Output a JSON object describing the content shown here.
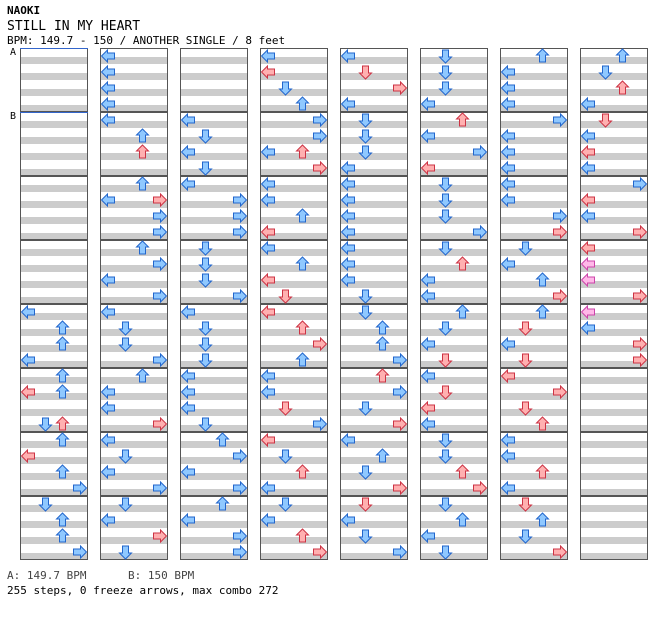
{
  "song": {
    "artist": "NAOKI",
    "title": "STILL IN MY HEART",
    "info": "BPM: 149.7 - 150 / ANOTHER SINGLE / 8 feet"
  },
  "markers": {
    "a": "A",
    "b": "B"
  },
  "footer": {
    "bpm_a": "A: 149.7 BPM",
    "bpm_b": "B: 150 BPM",
    "stats": "255 steps, 0 freeze arrows, max combo 272"
  },
  "colors": {
    "tap": "#ffb0b0",
    "tap_stroke": "#cc3344",
    "blue": "#8fc8ff",
    "blue_stroke": "#2266cc",
    "pink": "#ffb8e8",
    "pink_stroke": "#cc44aa",
    "stripe": "#cccccc",
    "bpm_line": "#3366cc"
  },
  "columns": [
    {
      "measures": [
        [],
        [],
        [],
        [],
        [
          [
            1,
            0,
            "L"
          ],
          [
            1,
            1,
            "U"
          ],
          [
            1,
            2,
            "U"
          ],
          [
            1,
            3,
            "L"
          ]
        ],
        [
          [
            1,
            0,
            "U"
          ],
          [
            0,
            1,
            "L"
          ],
          [
            0,
            3,
            "U"
          ],
          [
            1,
            1,
            "U"
          ],
          [
            1,
            3,
            "D"
          ]
        ],
        [
          [
            1,
            0,
            "U"
          ],
          [
            0,
            1,
            "L"
          ],
          [
            1,
            2,
            "U"
          ],
          [
            1,
            3,
            "R"
          ]
        ],
        [
          [
            1,
            0,
            "D"
          ],
          [
            1,
            1,
            "U"
          ],
          [
            1,
            2,
            "U"
          ],
          [
            1,
            3,
            "R"
          ]
        ]
      ]
    },
    {
      "measures": [
        [
          [
            1,
            0,
            "L"
          ],
          [
            1,
            1,
            "L"
          ],
          [
            1,
            2,
            "L"
          ],
          [
            1,
            3,
            "L"
          ]
        ],
        [
          [
            0,
            2,
            "U"
          ],
          [
            1,
            0,
            "L"
          ],
          [
            1,
            1,
            "U"
          ]
        ],
        [
          [
            1,
            0,
            "U"
          ],
          [
            0,
            1,
            "R"
          ],
          [
            1,
            1,
            "L"
          ],
          [
            1,
            2,
            "R"
          ],
          [
            1,
            3,
            "R"
          ]
        ],
        [
          [
            1,
            0,
            "U"
          ],
          [
            1,
            1,
            "R"
          ],
          [
            1,
            2,
            "L"
          ],
          [
            1,
            3,
            "R"
          ]
        ],
        [
          [
            1,
            0,
            "L"
          ],
          [
            1,
            1,
            "D"
          ],
          [
            1,
            2,
            "D"
          ],
          [
            1,
            3,
            "R"
          ]
        ],
        [
          [
            1,
            0,
            "U"
          ],
          [
            1,
            1,
            "L"
          ],
          [
            1,
            2,
            "L"
          ],
          [
            0,
            3,
            "R"
          ]
        ],
        [
          [
            1,
            0,
            "L"
          ],
          [
            1,
            1,
            "D"
          ],
          [
            1,
            2,
            "L"
          ],
          [
            1,
            3,
            "R"
          ]
        ],
        [
          [
            1,
            0,
            "D"
          ],
          [
            1,
            1,
            "L"
          ],
          [
            0,
            2,
            "R"
          ],
          [
            1,
            3,
            "D"
          ]
        ]
      ]
    },
    {
      "measures": [
        [],
        [
          [
            1,
            0,
            "L"
          ],
          [
            1,
            1,
            "D"
          ],
          [
            1,
            2,
            "L"
          ],
          [
            1,
            3,
            "D"
          ]
        ],
        [
          [
            1,
            0,
            "L"
          ],
          [
            1,
            1,
            "R"
          ],
          [
            1,
            2,
            "R"
          ],
          [
            1,
            3,
            "R"
          ]
        ],
        [
          [
            1,
            0,
            "D"
          ],
          [
            1,
            1,
            "D"
          ],
          [
            1,
            2,
            "D"
          ],
          [
            1,
            3,
            "R"
          ]
        ],
        [
          [
            1,
            0,
            "L"
          ],
          [
            1,
            1,
            "D"
          ],
          [
            1,
            2,
            "D"
          ],
          [
            1,
            3,
            "D"
          ]
        ],
        [
          [
            1,
            0,
            "L"
          ],
          [
            1,
            1,
            "L"
          ],
          [
            1,
            2,
            "L"
          ],
          [
            1,
            3,
            "D"
          ]
        ],
        [
          [
            1,
            0,
            "U"
          ],
          [
            1,
            1,
            "R"
          ],
          [
            1,
            2,
            "L"
          ],
          [
            1,
            3,
            "R"
          ]
        ],
        [
          [
            1,
            0,
            "U"
          ],
          [
            1,
            1,
            "L"
          ],
          [
            1,
            2,
            "R"
          ],
          [
            1,
            3,
            "R"
          ]
        ]
      ]
    },
    {
      "measures": [
        [
          [
            1,
            0,
            "L"
          ],
          [
            0,
            1,
            "L"
          ],
          [
            1,
            2,
            "D"
          ],
          [
            1,
            3,
            "U"
          ]
        ],
        [
          [
            1,
            0,
            "R"
          ],
          [
            1,
            1,
            "R"
          ],
          [
            0,
            2,
            "U"
          ],
          [
            1,
            2,
            "L"
          ],
          [
            0,
            3,
            "R"
          ]
        ],
        [
          [
            1,
            0,
            "L"
          ],
          [
            1,
            1,
            "L"
          ],
          [
            1,
            2,
            "U"
          ],
          [
            0,
            3,
            "L"
          ]
        ],
        [
          [
            1,
            0,
            "L"
          ],
          [
            1,
            1,
            "U"
          ],
          [
            0,
            2,
            "L"
          ],
          [
            0,
            3,
            "D"
          ]
        ],
        [
          [
            0,
            0,
            "L"
          ],
          [
            0,
            1,
            "U"
          ],
          [
            0,
            2,
            "R"
          ],
          [
            1,
            3,
            "U"
          ]
        ],
        [
          [
            1,
            0,
            "L"
          ],
          [
            1,
            1,
            "L"
          ],
          [
            0,
            2,
            "D"
          ],
          [
            1,
            3,
            "R"
          ]
        ],
        [
          [
            0,
            0,
            "L"
          ],
          [
            1,
            1,
            "D"
          ],
          [
            0,
            2,
            "U"
          ],
          [
            1,
            3,
            "L"
          ]
        ],
        [
          [
            1,
            0,
            "D"
          ],
          [
            1,
            1,
            "L"
          ],
          [
            0,
            2,
            "U"
          ],
          [
            0,
            3,
            "R"
          ]
        ]
      ]
    },
    {
      "measures": [
        [
          [
            1,
            0,
            "L"
          ],
          [
            0,
            1,
            "D"
          ],
          [
            0,
            2,
            "R"
          ],
          [
            1,
            3,
            "L"
          ]
        ],
        [
          [
            1,
            0,
            "D"
          ],
          [
            1,
            1,
            "D"
          ],
          [
            1,
            2,
            "D"
          ],
          [
            1,
            3,
            "L"
          ]
        ],
        [
          [
            1,
            0,
            "L"
          ],
          [
            1,
            1,
            "L"
          ],
          [
            1,
            2,
            "L"
          ],
          [
            1,
            3,
            "L"
          ]
        ],
        [
          [
            1,
            0,
            "L"
          ],
          [
            1,
            1,
            "L"
          ],
          [
            1,
            2,
            "L"
          ],
          [
            1,
            3,
            "D"
          ]
        ],
        [
          [
            1,
            0,
            "D"
          ],
          [
            1,
            1,
            "U"
          ],
          [
            1,
            2,
            "U"
          ],
          [
            1,
            3,
            "R"
          ]
        ],
        [
          [
            0,
            0,
            "U"
          ],
          [
            1,
            1,
            "R"
          ],
          [
            1,
            2,
            "D"
          ],
          [
            0,
            3,
            "R"
          ]
        ],
        [
          [
            1,
            0,
            "L"
          ],
          [
            1,
            1,
            "U"
          ],
          [
            1,
            2,
            "D"
          ],
          [
            0,
            3,
            "R"
          ]
        ],
        [
          [
            0,
            0,
            "D"
          ],
          [
            1,
            1,
            "L"
          ],
          [
            1,
            2,
            "D"
          ],
          [
            1,
            3,
            "R"
          ]
        ]
      ]
    },
    {
      "measures": [
        [
          [
            1,
            0,
            "D"
          ],
          [
            1,
            1,
            "D"
          ],
          [
            1,
            2,
            "D"
          ],
          [
            1,
            3,
            "L"
          ]
        ],
        [
          [
            0,
            0,
            "U"
          ],
          [
            1,
            1,
            "L"
          ],
          [
            1,
            2,
            "R"
          ],
          [
            0,
            3,
            "L"
          ]
        ],
        [
          [
            1,
            0,
            "D"
          ],
          [
            1,
            1,
            "D"
          ],
          [
            1,
            2,
            "D"
          ],
          [
            1,
            3,
            "R"
          ]
        ],
        [
          [
            1,
            0,
            "D"
          ],
          [
            0,
            1,
            "U"
          ],
          [
            1,
            2,
            "L"
          ],
          [
            1,
            3,
            "L"
          ]
        ],
        [
          [
            1,
            0,
            "U"
          ],
          [
            1,
            1,
            "D"
          ],
          [
            1,
            2,
            "L"
          ],
          [
            0,
            3,
            "D"
          ]
        ],
        [
          [
            1,
            0,
            "L"
          ],
          [
            0,
            1,
            "D"
          ],
          [
            0,
            2,
            "L"
          ],
          [
            1,
            3,
            "L"
          ]
        ],
        [
          [
            1,
            0,
            "D"
          ],
          [
            1,
            1,
            "D"
          ],
          [
            0,
            2,
            "U"
          ],
          [
            0,
            3,
            "R"
          ]
        ],
        [
          [
            1,
            0,
            "D"
          ],
          [
            1,
            1,
            "U"
          ],
          [
            1,
            2,
            "L"
          ],
          [
            1,
            3,
            "D"
          ]
        ]
      ]
    },
    {
      "measures": [
        [
          [
            1,
            0,
            "U"
          ],
          [
            1,
            1,
            "L"
          ],
          [
            1,
            2,
            "L"
          ],
          [
            1,
            3,
            "L"
          ]
        ],
        [
          [
            1,
            0,
            "R"
          ],
          [
            1,
            1,
            "L"
          ],
          [
            1,
            2,
            "L"
          ],
          [
            1,
            3,
            "L"
          ]
        ],
        [
          [
            1,
            0,
            "L"
          ],
          [
            1,
            1,
            "L"
          ],
          [
            1,
            2,
            "R"
          ],
          [
            0,
            3,
            "R"
          ]
        ],
        [
          [
            1,
            0,
            "D"
          ],
          [
            1,
            1,
            "L"
          ],
          [
            1,
            2,
            "U"
          ],
          [
            0,
            3,
            "R"
          ]
        ],
        [
          [
            1,
            0,
            "U"
          ],
          [
            0,
            1,
            "D"
          ],
          [
            1,
            2,
            "L"
          ],
          [
            0,
            3,
            "D"
          ]
        ],
        [
          [
            0,
            0,
            "L"
          ],
          [
            0,
            1,
            "R"
          ],
          [
            0,
            2,
            "D"
          ],
          [
            0,
            3,
            "U"
          ]
        ],
        [
          [
            1,
            0,
            "L"
          ],
          [
            1,
            1,
            "L"
          ],
          [
            0,
            2,
            "U"
          ],
          [
            1,
            3,
            "L"
          ]
        ],
        [
          [
            0,
            0,
            "D"
          ],
          [
            1,
            1,
            "U"
          ],
          [
            1,
            2,
            "D"
          ],
          [
            0,
            3,
            "R"
          ]
        ]
      ]
    },
    {
      "measures": [
        [
          [
            1,
            0,
            "U"
          ],
          [
            1,
            1,
            "D"
          ],
          [
            0,
            2,
            "U"
          ],
          [
            1,
            3,
            "L"
          ]
        ],
        [
          [
            0,
            0,
            "D"
          ],
          [
            1,
            1,
            "L"
          ],
          [
            0,
            2,
            "L"
          ],
          [
            1,
            3,
            "L"
          ]
        ],
        [
          [
            1,
            0,
            "R"
          ],
          [
            0,
            1,
            "L"
          ],
          [
            1,
            2,
            "L"
          ],
          [
            0,
            3,
            "R"
          ]
        ],
        [
          [
            0,
            0,
            "L"
          ],
          [
            2,
            1,
            "L"
          ],
          [
            2,
            2,
            "L"
          ],
          [
            0,
            3,
            "R"
          ]
        ],
        [
          [
            2,
            0,
            "L"
          ],
          [
            1,
            1,
            "L"
          ],
          [
            0,
            2,
            "R"
          ],
          [
            0,
            3,
            "R"
          ]
        ],
        [],
        [],
        []
      ]
    }
  ]
}
